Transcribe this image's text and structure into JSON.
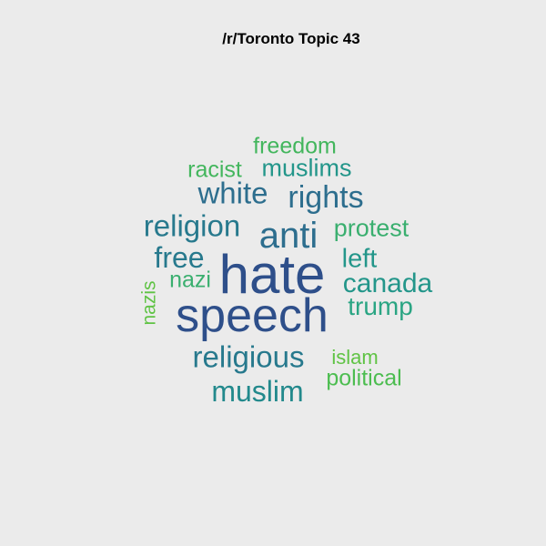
{
  "title": "/r/Toronto Topic 43",
  "words": [
    {
      "text": "hate",
      "color": "#2e4f8a"
    },
    {
      "text": "speech",
      "color": "#2e4f8a"
    },
    {
      "text": "anti",
      "color": "#2d6e8e"
    },
    {
      "text": "rights",
      "color": "#2d6e8e"
    },
    {
      "text": "white",
      "color": "#2d6e8e"
    },
    {
      "text": "religion",
      "color": "#27798d"
    },
    {
      "text": "religious",
      "color": "#27798d"
    },
    {
      "text": "muslim",
      "color": "#22898c"
    },
    {
      "text": "free",
      "color": "#27798d"
    },
    {
      "text": "canada",
      "color": "#23968a"
    },
    {
      "text": "muslims",
      "color": "#23968a"
    },
    {
      "text": "left",
      "color": "#23968a"
    },
    {
      "text": "trump",
      "color": "#2aa583"
    },
    {
      "text": "protest",
      "color": "#3aaf6f"
    },
    {
      "text": "nazi",
      "color": "#3aaf6f"
    },
    {
      "text": "freedom",
      "color": "#43b65d"
    },
    {
      "text": "racist",
      "color": "#43b65d"
    },
    {
      "text": "political",
      "color": "#4cbd50"
    },
    {
      "text": "islam",
      "color": "#5fc344"
    },
    {
      "text": "nazis",
      "color": "#5fc344"
    }
  ]
}
